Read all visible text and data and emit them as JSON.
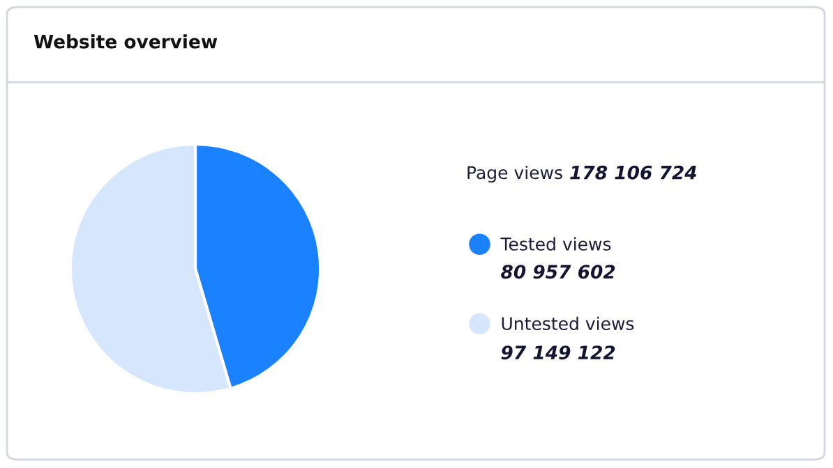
{
  "chart_data": {
    "type": "pie",
    "title": "Website overview",
    "categories": [
      "Tested views",
      "Untested views"
    ],
    "values": [
      80957602,
      97149122
    ],
    "colors": [
      "#1a82ff",
      "#d6e6fc"
    ],
    "value_labels": [
      "80 957 602",
      "97 149 122"
    ],
    "annotations": [
      "Page views",
      "178 106 724"
    ],
    "legend": "right"
  }
}
